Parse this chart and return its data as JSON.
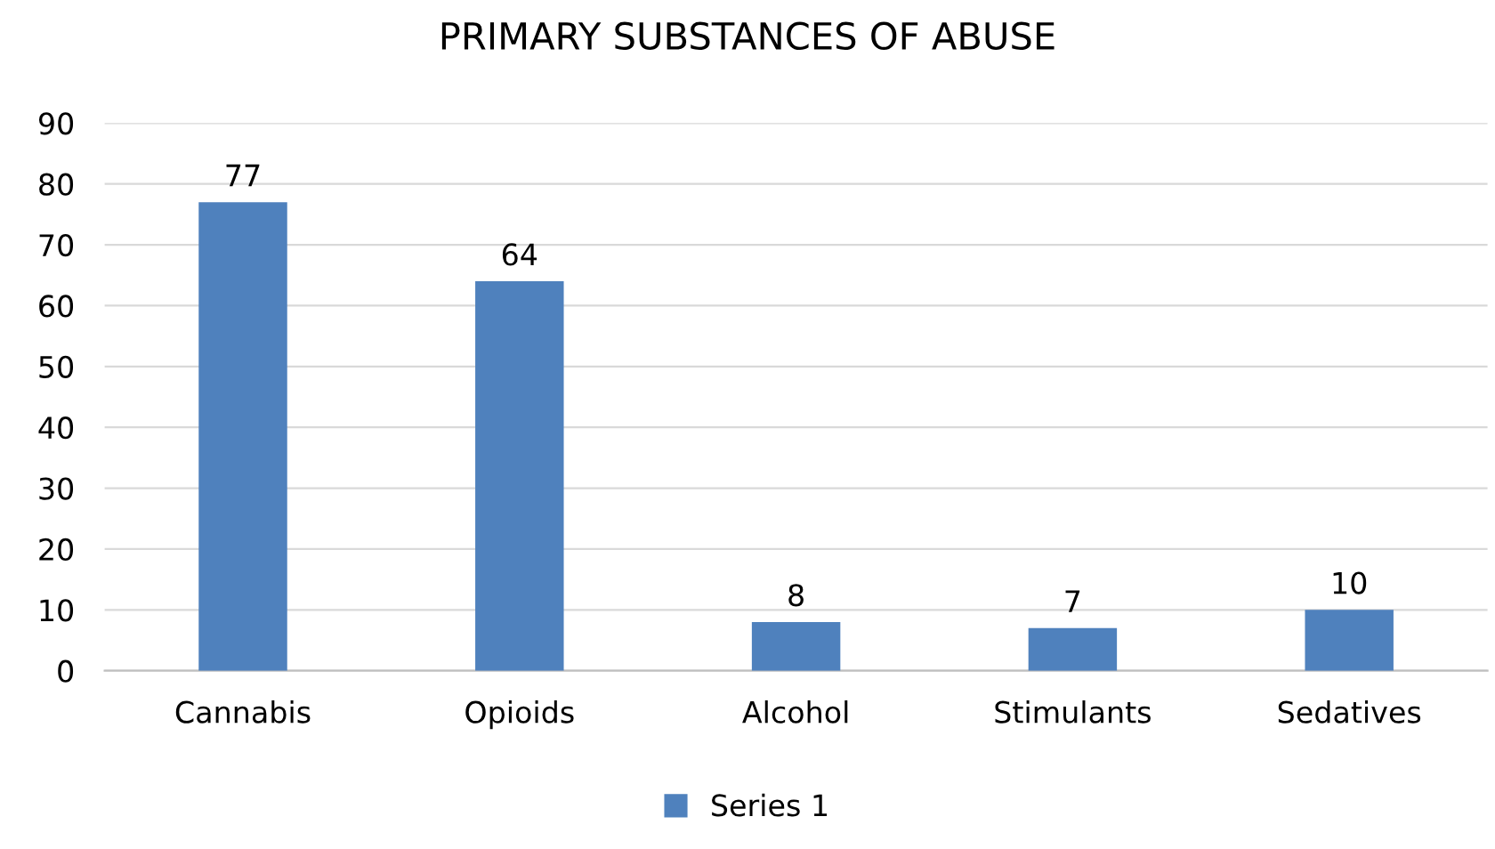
{
  "chart_data": {
    "type": "bar",
    "title": "PRIMARY SUBSTANCES OF ABUSE",
    "categories": [
      "Cannabis",
      "Opioids",
      "Alcohol",
      "Stimulants",
      "Sedatives"
    ],
    "series": [
      {
        "name": "Series 1",
        "color": "#4f81bd",
        "values": [
          77,
          64,
          8,
          7,
          10
        ]
      }
    ],
    "ylim": [
      0,
      90
    ],
    "yticks": [
      0,
      10,
      20,
      30,
      40,
      50,
      60,
      70,
      80,
      90
    ],
    "grid": "y",
    "legend": "bottom",
    "data_labels": true
  }
}
